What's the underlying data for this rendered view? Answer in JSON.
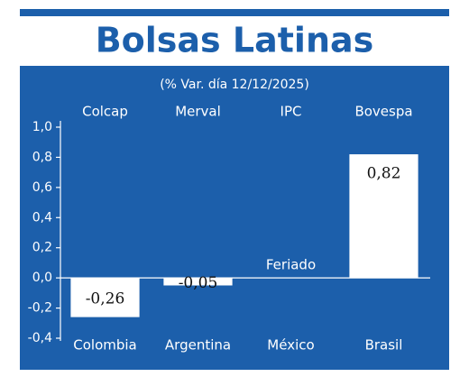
{
  "chart_data": {
    "type": "bar",
    "title": "Bolsas Latinas",
    "subtitle": "(% Var. día 12/12/2025)",
    "categories": [
      "Colombia",
      "Argentina",
      "México",
      "Brasil"
    ],
    "index_names": [
      "Colcap",
      "Merval",
      "IPC",
      "Bovespa"
    ],
    "values": [
      -0.26,
      -0.05,
      null,
      0.82
    ],
    "value_labels": [
      "-0,26",
      "-0,05",
      "Feriado",
      "0,82"
    ],
    "color": "#ffffff",
    "ylim": [
      -0.4,
      1.0
    ],
    "yticks": [
      {
        "value": 1.0,
        "label": "1,0"
      },
      {
        "value": 0.8,
        "label": "0,8"
      },
      {
        "value": 0.6,
        "label": "0,6"
      },
      {
        "value": 0.4,
        "label": "0,4"
      },
      {
        "value": 0.2,
        "label": "0,2"
      },
      {
        "value": 0.0,
        "label": "0,0"
      },
      {
        "value": -0.2,
        "label": "-0,2"
      },
      {
        "value": -0.4,
        "label": "-0,4"
      }
    ]
  }
}
